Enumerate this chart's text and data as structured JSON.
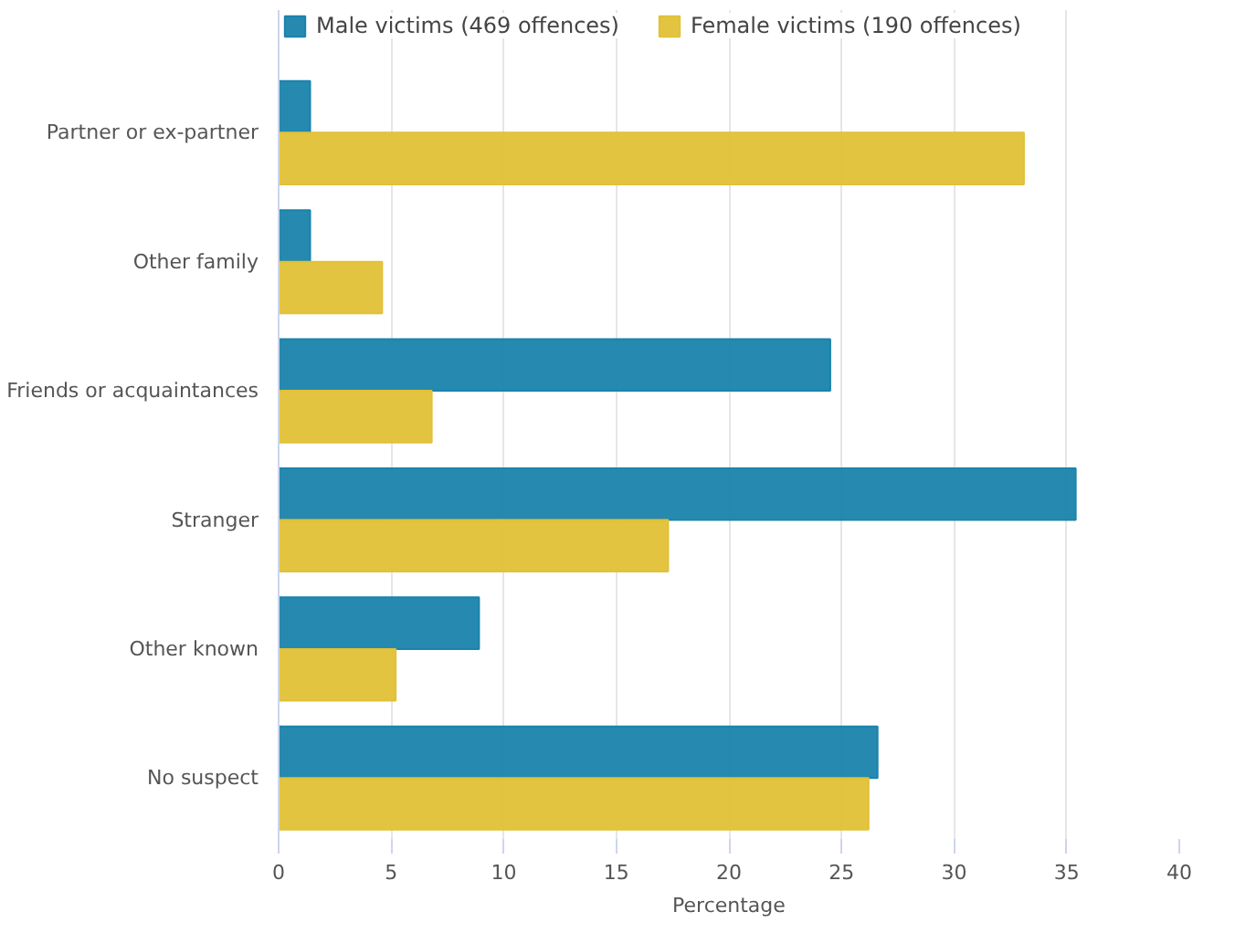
{
  "chart_data": {
    "type": "bar",
    "orientation": "horizontal",
    "xlabel": "Percentage",
    "categories": [
      "Partner or ex-partner",
      "Other family",
      "Friends or acquaintances",
      "Stranger",
      "Other known",
      "No suspect"
    ],
    "series": [
      {
        "name": "Male victims (469 offences)",
        "color": "#1a83ac",
        "values": [
          1.4,
          1.4,
          24.5,
          35.4,
          8.9,
          26.6
        ]
      },
      {
        "name": "Female victims (190 offences)",
        "color": "#e2c136",
        "values": [
          33.1,
          4.6,
          6.8,
          17.3,
          5.2,
          26.2
        ]
      }
    ],
    "xlim": [
      0,
      40
    ],
    "xticks": [
      0,
      5,
      10,
      15,
      20,
      25,
      30,
      35,
      40
    ],
    "grid": "x",
    "legend": "top left"
  }
}
